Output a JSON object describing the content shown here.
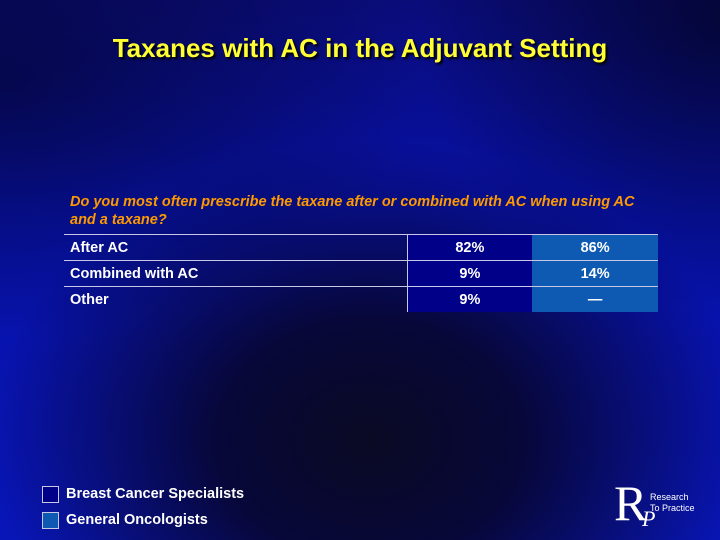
{
  "title": "Taxanes with AC in the Adjuvant Setting",
  "question": "Do you most often prescribe the taxane after or combined with AC when using AC and a taxane?",
  "table": {
    "rows": [
      {
        "label": "After AC",
        "breast_cancer_specialists": "82%",
        "general_oncologists": "86%"
      },
      {
        "label": "Combined with AC",
        "breast_cancer_specialists": "9%",
        "general_oncologists": "14%"
      },
      {
        "label": "Other",
        "breast_cancer_specialists": "9%",
        "general_oncologists": "—"
      }
    ]
  },
  "legend": [
    {
      "label": "Breast Cancer Specialists",
      "color": "#000088"
    },
    {
      "label": "General Oncologists",
      "color": "#0e5ab2"
    }
  ],
  "logo": {
    "line1": "Research",
    "line2": "To Practice",
    "mark": "R",
    "mark2": "P"
  }
}
